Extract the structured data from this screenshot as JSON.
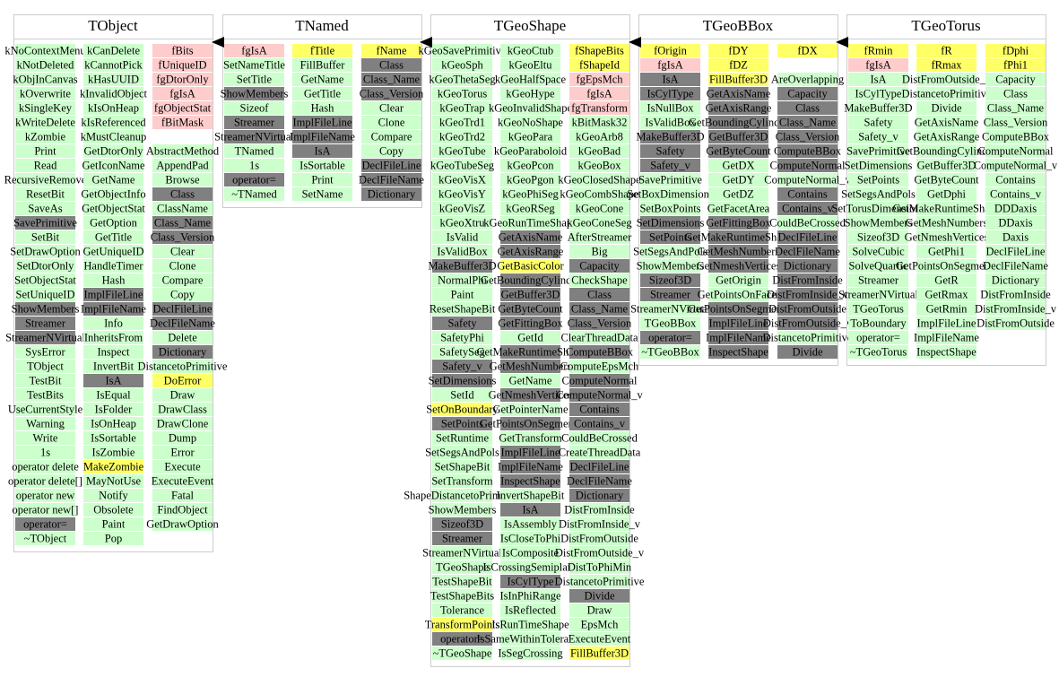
{
  "cell_color": "#ccffcc",
  "classes": [
    {
      "name": "TObject",
      "columns": [
        [
          "kNoContextMenu",
          "kNotDeleted",
          "kObjInCanvas",
          "kOverwrite",
          "kSingleKey",
          "kWriteDelete",
          "kZombie",
          "Print",
          "Read",
          "RecursiveRemove",
          "ResetBit",
          "SaveAs",
          {
            "text": "SavePrimitive",
            "color": "#808080"
          },
          "SetBit",
          "SetDrawOption",
          "SetDtorOnly",
          "SetObjectStat",
          "SetUniqueID",
          {
            "text": "ShowMembers",
            "color": "#808080"
          },
          {
            "text": "Streamer",
            "color": "#808080"
          },
          {
            "text": "StreamerNVirtual",
            "color": "#808080"
          },
          "SysError",
          "TObject",
          "TestBit",
          "TestBits",
          "UseCurrentStyle",
          "Warning",
          "Write",
          "1s",
          "operator delete",
          "operator delete[]",
          "operator new",
          "operator new[]",
          {
            "text": "operator=",
            "color": "#808080"
          },
          "~TObject"
        ],
        [
          "kCanDelete",
          "kCannotPick",
          "kHasUUID",
          "kInvalidObject",
          "kIsOnHeap",
          "kIsReferenced",
          "kMustCleanup",
          "GetDtorOnly",
          "GetIconName",
          "GetName",
          "GetObjectInfo",
          "GetObjectStat",
          "GetOption",
          "GetTitle",
          "GetUniqueID",
          "HandleTimer",
          "Hash",
          {
            "text": "ImplFileLine",
            "color": "#808080"
          },
          {
            "text": "ImplFileName",
            "color": "#808080"
          },
          "Info",
          "InheritsFrom",
          "Inspect",
          "InvertBit",
          {
            "text": "IsA",
            "color": "#808080"
          },
          "IsEqual",
          "IsFolder",
          "IsOnHeap",
          "IsSortable",
          "IsZombie",
          {
            "text": "MakeZombie",
            "color": "#ffff66"
          },
          "MayNotUse",
          "Notify",
          "Obsolete",
          "Paint",
          "Pop"
        ],
        [
          {
            "text": "fBits",
            "color": "#ffcccc"
          },
          {
            "text": "fUniqueID",
            "color": "#ffcccc"
          },
          {
            "text": "fgDtorOnly",
            "color": "#ffcccc"
          },
          {
            "text": "fgIsA",
            "color": "#ffcccc"
          },
          {
            "text": "fgObjectStat",
            "color": "#ffcccc"
          },
          {
            "text": "fBitMask",
            "color": "#ffcccc"
          },
          null,
          "AbstractMethod",
          "AppendPad",
          "Browse",
          {
            "text": "Class",
            "color": "#808080"
          },
          "ClassName",
          {
            "text": "Class_Name",
            "color": "#808080"
          },
          {
            "text": "Class_Version",
            "color": "#808080"
          },
          "Clear",
          "Clone",
          "Compare",
          "Copy",
          {
            "text": "DeclFileLine",
            "color": "#808080"
          },
          {
            "text": "DeclFileName",
            "color": "#808080"
          },
          "Delete",
          {
            "text": "Dictionary",
            "color": "#808080"
          },
          "DistancetoPrimitive",
          {
            "text": "DoError",
            "color": "#ffff66"
          },
          "Draw",
          "DrawClass",
          "DrawClone",
          "Dump",
          "Error",
          "Execute",
          "ExecuteEvent",
          "Fatal",
          "FindObject",
          "GetDrawOption"
        ]
      ]
    },
    {
      "name": "TNamed",
      "columns": [
        [
          {
            "text": "fgIsA",
            "color": "#ffcccc"
          },
          "SetNameTitle",
          "SetTitle",
          {
            "text": "ShowMembers",
            "color": "#808080"
          },
          "Sizeof",
          {
            "text": "Streamer",
            "color": "#808080"
          },
          {
            "text": "StreamerNVirtual",
            "color": "#808080"
          },
          "TNamed",
          "1s",
          {
            "text": "operator=",
            "color": "#808080"
          },
          "~TNamed"
        ],
        [
          {
            "text": "fTitle",
            "color": "#ffff66"
          },
          "FillBuffer",
          "GetName",
          "GetTitle",
          "Hash",
          {
            "text": "ImplFileLine",
            "color": "#808080"
          },
          {
            "text": "ImplFileName",
            "color": "#808080"
          },
          {
            "text": "IsA",
            "color": "#808080"
          },
          "IsSortable",
          "Print",
          "SetName"
        ],
        [
          {
            "text": "fName",
            "color": "#ffff66"
          },
          {
            "text": "Class",
            "color": "#808080"
          },
          {
            "text": "Class_Name",
            "color": "#808080"
          },
          {
            "text": "Class_Version",
            "color": "#808080"
          },
          "Clear",
          "Clone",
          "Compare",
          "Copy",
          {
            "text": "DeclFileLine",
            "color": "#808080"
          },
          {
            "text": "DeclFileName",
            "color": "#808080"
          },
          {
            "text": "Dictionary",
            "color": "#808080"
          }
        ]
      ]
    },
    {
      "name": "TGeoShape",
      "columns": [
        [
          "kGeoSavePrimitive",
          "kGeoSph",
          "kGeoThetaSeg",
          "kGeoTorus",
          "kGeoTrap",
          "kGeoTrd1",
          "kGeoTrd2",
          "kGeoTube",
          "kGeoTubeSeg",
          "kGeoVisX",
          "kGeoVisY",
          "kGeoVisZ",
          "kGeoXtru",
          "IsValid",
          "IsValidBox",
          {
            "text": "MakeBuffer3D",
            "color": "#808080"
          },
          "NormalPhi",
          "Paint",
          "ResetShapeBit",
          {
            "text": "Safety",
            "color": "#808080"
          },
          "SafetyPhi",
          "SafetySeg",
          {
            "text": "Safety_v",
            "color": "#808080"
          },
          {
            "text": "SetDimensions",
            "color": "#808080"
          },
          "SetId",
          {
            "text": "SetOnBoundary",
            "color": "#ffff66"
          },
          {
            "text": "SetPoints",
            "color": "#808080"
          },
          "SetRuntime",
          "SetSegsAndPols",
          "SetShapeBit",
          "SetTransform",
          "ShapeDistancetoPrimitive",
          "ShowMembers",
          {
            "text": "Sizeof3D",
            "color": "#808080"
          },
          {
            "text": "Streamer",
            "color": "#808080"
          },
          "StreamerNVirtual",
          "TGeoShape",
          "TestShapeBit",
          "TestShapeBits",
          "Tolerance",
          {
            "text": "TransformPoints",
            "color": "#ffff66"
          },
          {
            "text": "operator=",
            "color": "#808080"
          },
          "~TGeoShape"
        ],
        [
          "kGeoCtub",
          "kGeoEltu",
          "kGeoHalfSpace",
          "kGeoHype",
          "kGeoInvalidShape",
          "kGeoNoShape",
          "kGeoPara",
          "kGeoParaboloid",
          "kGeoPcon",
          "kGeoPgon",
          "kGeoPhiSeg",
          "kGeoRSeg",
          "kGeoRunTimeShape",
          {
            "text": "GetAxisName",
            "color": "#808080"
          },
          {
            "text": "GetAxisRange",
            "color": "#808080"
          },
          {
            "text": "GetBasicColor",
            "color": "#ffff66"
          },
          {
            "text": "GetBoundingCylinder",
            "color": "#808080"
          },
          {
            "text": "GetBuffer3D",
            "color": "#808080"
          },
          {
            "text": "GetByteCount",
            "color": "#808080"
          },
          {
            "text": "GetFittingBox",
            "color": "#808080"
          },
          "GetId",
          {
            "text": "GetMakeRuntimeShape",
            "color": "#808080"
          },
          {
            "text": "GetMeshNumbers",
            "color": "#808080"
          },
          "GetName",
          {
            "text": "GetNmeshVertices",
            "color": "#808080"
          },
          "GetPointerName",
          {
            "text": "GetPointsOnSegments",
            "color": "#808080"
          },
          "GetTransform",
          {
            "text": "ImplFileLine",
            "color": "#808080"
          },
          {
            "text": "ImplFileName",
            "color": "#808080"
          },
          {
            "text": "InspectShape",
            "color": "#808080"
          },
          "InvertShapeBit",
          {
            "text": "IsA",
            "color": "#808080"
          },
          "IsAssembly",
          "IsCloseToPhi",
          "IsComposite",
          "IsCrossingSemiplane",
          {
            "text": "IsCylType",
            "color": "#808080"
          },
          "IsInPhiRange",
          "IsReflected",
          "IsRunTimeShape",
          "IsSameWithinTolerance",
          "IsSegCrossing"
        ],
        [
          {
            "text": "fShapeBits",
            "color": "#ffff66"
          },
          {
            "text": "fShapeId",
            "color": "#ffff66"
          },
          {
            "text": "fgEpsMch",
            "color": "#ffcccc"
          },
          {
            "text": "fgIsA",
            "color": "#ffcccc"
          },
          {
            "text": "fgTransform",
            "color": "#ffcccc"
          },
          "kBitMask32",
          "kGeoArb8",
          "kGeoBad",
          "kGeoBox",
          "kGeoClosedShape",
          "kGeoCombShape",
          "kGeoCone",
          "kGeoConeSeg",
          "AfterStreamer",
          "Big",
          {
            "text": "Capacity",
            "color": "#808080"
          },
          "CheckShape",
          {
            "text": "Class",
            "color": "#808080"
          },
          {
            "text": "Class_Name",
            "color": "#808080"
          },
          {
            "text": "Class_Version",
            "color": "#808080"
          },
          "ClearThreadData",
          {
            "text": "ComputeBBox",
            "color": "#808080"
          },
          "ComputeEpsMch",
          {
            "text": "ComputeNormal",
            "color": "#808080"
          },
          {
            "text": "ComputeNormal_v",
            "color": "#808080"
          },
          {
            "text": "Contains",
            "color": "#808080"
          },
          {
            "text": "Contains_v",
            "color": "#808080"
          },
          "CouldBeCrossed",
          "CreateThreadData",
          {
            "text": "DeclFileLine",
            "color": "#808080"
          },
          {
            "text": "DeclFileName",
            "color": "#808080"
          },
          {
            "text": "Dictionary",
            "color": "#808080"
          },
          "DistFromInside",
          "DistFromInside_v",
          "DistFromOutside",
          "DistFromOutside_v",
          "DistToPhiMin",
          "DistancetoPrimitive",
          {
            "text": "Divide",
            "color": "#808080"
          },
          "Draw",
          "EpsMch",
          "ExecuteEvent",
          {
            "text": "FillBuffer3D",
            "color": "#ffff66"
          }
        ]
      ]
    },
    {
      "name": "TGeoBBox",
      "columns": [
        [
          {
            "text": "fOrigin",
            "color": "#ffff66"
          },
          {
            "text": "fgIsA",
            "color": "#ffcccc"
          },
          {
            "text": "IsA",
            "color": "#808080"
          },
          {
            "text": "IsCylType",
            "color": "#808080"
          },
          "IsNullBox",
          "IsValidBox",
          {
            "text": "MakeBuffer3D",
            "color": "#808080"
          },
          {
            "text": "Safety",
            "color": "#808080"
          },
          {
            "text": "Safety_v",
            "color": "#808080"
          },
          "SavePrimitive",
          "SetBoxDimensions",
          "SetBoxPoints",
          {
            "text": "SetDimensions",
            "color": "#808080"
          },
          {
            "text": "SetPoints",
            "color": "#808080"
          },
          "SetSegsAndPols",
          "ShowMembers",
          {
            "text": "Sizeof3D",
            "color": "#808080"
          },
          {
            "text": "Streamer",
            "color": "#808080"
          },
          "StreamerNVirtual",
          "TGeoBBox",
          {
            "text": "operator=",
            "color": "#808080"
          },
          "~TGeoBBox"
        ],
        [
          {
            "text": "fDY",
            "color": "#ffff66"
          },
          {
            "text": "fDZ",
            "color": "#ffff66"
          },
          {
            "text": "FillBuffer3D",
            "color": "#ffff66"
          },
          {
            "text": "GetAxisName",
            "color": "#808080"
          },
          {
            "text": "GetAxisRange",
            "color": "#808080"
          },
          {
            "text": "GetBoundingCylinder",
            "color": "#808080"
          },
          {
            "text": "GetBuffer3D",
            "color": "#808080"
          },
          {
            "text": "GetByteCount",
            "color": "#808080"
          },
          "GetDX",
          "GetDY",
          "GetDZ",
          "GetFacetArea",
          {
            "text": "GetFittingBox",
            "color": "#808080"
          },
          {
            "text": "GetMakeRuntimeShape",
            "color": "#808080"
          },
          {
            "text": "GetMeshNumbers",
            "color": "#808080"
          },
          {
            "text": "GetNmeshVertices",
            "color": "#808080"
          },
          "GetOrigin",
          "GetPointsOnFacet",
          {
            "text": "GetPointsOnSegments",
            "color": "#808080"
          },
          {
            "text": "ImplFileLine",
            "color": "#808080"
          },
          {
            "text": "ImplFileName",
            "color": "#808080"
          },
          {
            "text": "InspectShape",
            "color": "#808080"
          }
        ],
        [
          {
            "text": "fDX",
            "color": "#ffff66"
          },
          null,
          "AreOverlapping",
          {
            "text": "Capacity",
            "color": "#808080"
          },
          {
            "text": "Class",
            "color": "#808080"
          },
          {
            "text": "Class_Name",
            "color": "#808080"
          },
          {
            "text": "Class_Version",
            "color": "#808080"
          },
          {
            "text": "ComputeBBox",
            "color": "#808080"
          },
          {
            "text": "ComputeNormal",
            "color": "#808080"
          },
          "ComputeNormal_v",
          {
            "text": "Contains",
            "color": "#808080"
          },
          {
            "text": "Contains_v",
            "color": "#808080"
          },
          "CouldBeCrossed",
          {
            "text": "DeclFileLine",
            "color": "#808080"
          },
          {
            "text": "DeclFileName",
            "color": "#808080"
          },
          {
            "text": "Dictionary",
            "color": "#808080"
          },
          {
            "text": "DistFromInside",
            "color": "#808080"
          },
          {
            "text": "DistFromInside_v",
            "color": "#808080"
          },
          {
            "text": "DistFromOutside",
            "color": "#808080"
          },
          {
            "text": "DistFromOutside_v",
            "color": "#808080"
          },
          "DistancetoPrimitive",
          {
            "text": "Divide",
            "color": "#808080"
          }
        ]
      ]
    },
    {
      "name": "TGeoTorus",
      "columns": [
        [
          {
            "text": "fRmin",
            "color": "#ffff66"
          },
          {
            "text": "fgIsA",
            "color": "#ffcccc"
          },
          "IsA",
          "IsCylType",
          "MakeBuffer3D",
          "Safety",
          "Safety_v",
          "SavePrimitive",
          "SetDimensions",
          "SetPoints",
          "SetSegsAndPols",
          "SetTorusDimensions",
          "ShowMembers",
          "Sizeof3D",
          "SolveCubic",
          "SolveQuartic",
          "Streamer",
          "StreamerNVirtual",
          "TGeoTorus",
          "ToBoundary",
          "operator=",
          "~TGeoTorus"
        ],
        [
          {
            "text": "fR",
            "color": "#ffff66"
          },
          {
            "text": "fRmax",
            "color": "#ffff66"
          },
          "DistFromOutside_v",
          "DistancetoPrimitive",
          "Divide",
          "GetAxisName",
          "GetAxisRange",
          "GetBoundingCylinder",
          "GetBuffer3D",
          "GetByteCount",
          "GetDphi",
          "GetMakeRuntimeShape",
          "GetMeshNumbers",
          "GetNmeshVertices",
          "GetPhi1",
          "GetPointsOnSegments",
          "GetR",
          "GetRmax",
          "GetRmin",
          "ImplFileLine",
          "ImplFileName",
          "InspectShape"
        ],
        [
          {
            "text": "fDphi",
            "color": "#ffff66"
          },
          {
            "text": "fPhi1",
            "color": "#ffff66"
          },
          "Capacity",
          "Class",
          "Class_Name",
          "Class_Version",
          "ComputeBBox",
          "ComputeNormal",
          "ComputeNormal_v",
          "Contains",
          "Contains_v",
          "DDDaxis",
          "DDaxis",
          "Daxis",
          "DeclFileLine",
          "DeclFileName",
          "Dictionary",
          "DistFromInside",
          "DistFromInside_v",
          "DistFromOutside"
        ]
      ]
    }
  ]
}
